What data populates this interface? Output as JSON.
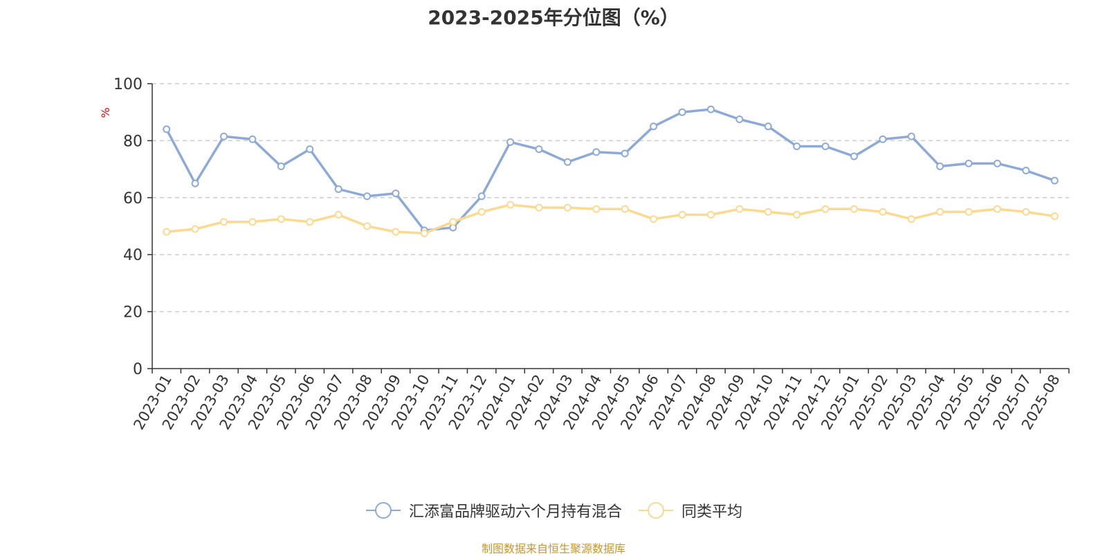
{
  "chart_data": {
    "type": "line",
    "title": "2023-2025年分位图（%）",
    "ylabel": "%",
    "xlabel": "",
    "ylim": [
      0,
      100
    ],
    "yticks": [
      0,
      20,
      40,
      60,
      80,
      100
    ],
    "grid": true,
    "legend_position": "bottom",
    "categories": [
      "2023-01",
      "2023-02",
      "2023-03",
      "2023-04",
      "2023-05",
      "2023-06",
      "2023-07",
      "2023-08",
      "2023-09",
      "2023-10",
      "2023-11",
      "2023-12",
      "2024-01",
      "2024-02",
      "2024-03",
      "2024-04",
      "2024-05",
      "2024-06",
      "2024-07",
      "2024-08",
      "2024-09",
      "2024-10",
      "2024-11",
      "2024-12",
      "2025-01",
      "2025-02",
      "2025-03",
      "2025-04",
      "2025-05",
      "2025-06",
      "2025-07",
      "2025-08"
    ],
    "series": [
      {
        "name": "汇添富品牌驱动六个月持有混合",
        "color": "#8caad9",
        "values": [
          84,
          65,
          81.5,
          80.5,
          71,
          77,
          63,
          60.5,
          61.5,
          48.5,
          49.5,
          60.5,
          79.5,
          77,
          72.5,
          76,
          75.5,
          85,
          90,
          91,
          87.5,
          85,
          78,
          78,
          74.5,
          80.5,
          81.5,
          71,
          72,
          72,
          69.5,
          66
        ]
      },
      {
        "name": "同类平均",
        "color": "#fcd98f",
        "values": [
          48,
          49,
          51.5,
          51.5,
          52.5,
          51.5,
          54,
          50,
          48,
          47.5,
          51.5,
          55,
          57.5,
          56.5,
          56.5,
          56,
          56,
          52.5,
          54,
          54,
          56,
          55,
          54,
          56,
          56,
          55,
          52.5,
          55,
          55,
          56,
          55,
          53.5
        ]
      }
    ],
    "axis_color": "#333333",
    "grid_color": "#cccccc",
    "ylabel_color": "#e60000",
    "source_color": "#c9962b"
  },
  "footer": {
    "source": "制图数据来自恒生聚源数据库"
  }
}
